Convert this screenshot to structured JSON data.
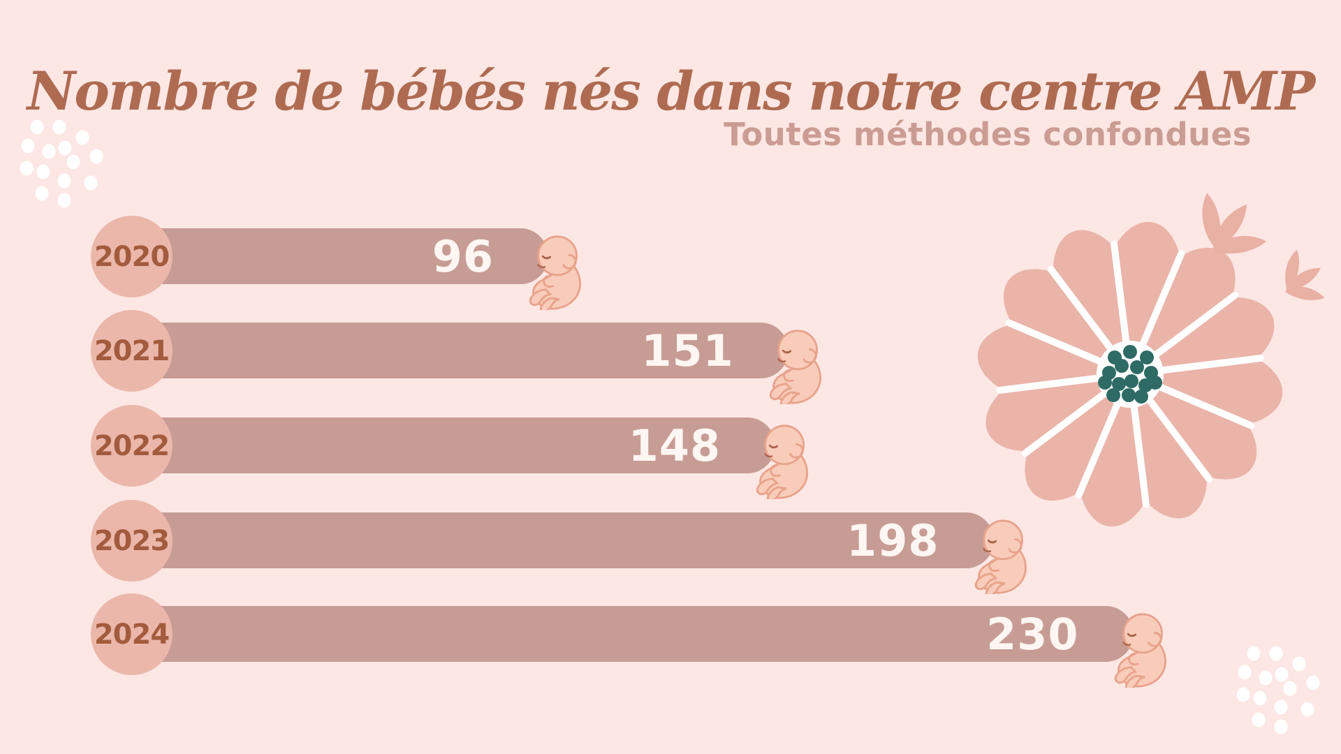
{
  "header": {
    "title": "Nombre de bébés nés dans notre centre AMP",
    "subtitle": "Toutes méthodes confondues"
  },
  "chart_data": {
    "type": "bar",
    "orientation": "horizontal",
    "title": "Nombre de bébés nés dans notre centre AMP",
    "subtitle": "Toutes méthodes confondues",
    "categories": [
      "2020",
      "2021",
      "2022",
      "2023",
      "2024"
    ],
    "values": [
      96,
      151,
      148,
      198,
      230
    ],
    "value_labels_inside_bars": true,
    "bar_end_icon": "fetus-icon",
    "xlim": [
      0,
      240
    ],
    "grid": false,
    "legend": false
  },
  "colors": {
    "background": "#fce7e4",
    "title": "#ae6b51",
    "subtitle": "#cb9c93",
    "bar": "#c79c94",
    "year_badge": "#ebb7ab",
    "year_text": "#a35b3d",
    "value_text": "#fdf6f3",
    "baby_skin": "#f9ccba",
    "baby_outline": "#e8a28b",
    "baby_feature": "#a9644c",
    "flower_petal": "#eab4a9",
    "flower_center_dots": "#2e6b64",
    "leaf": "#e9b0a4",
    "white_dots": "#ffffff"
  },
  "decor": {
    "flower": "flower-icon",
    "leaves": "leaves-icon",
    "dots_top_left": "dots-cluster-icon",
    "dots_bottom_right": "dots-cluster-icon"
  }
}
